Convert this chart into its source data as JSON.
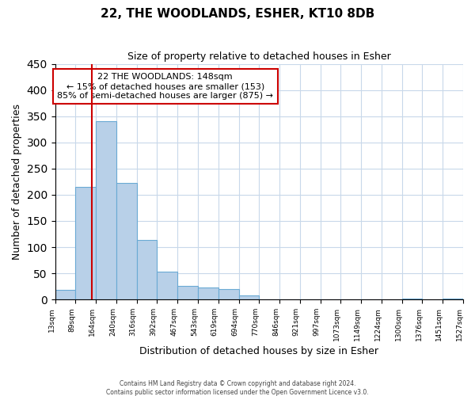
{
  "title": "22, THE WOODLANDS, ESHER, KT10 8DB",
  "subtitle": "Size of property relative to detached houses in Esher",
  "xlabel": "Distribution of detached houses by size in Esher",
  "ylabel": "Number of detached properties",
  "bar_heights": [
    18,
    215,
    340,
    222,
    113,
    53,
    26,
    23,
    20,
    8,
    0,
    0,
    0,
    0,
    0,
    0,
    0,
    2,
    0,
    2
  ],
  "bar_color": "#b8d0e8",
  "bar_edge_color": "#6aaad4",
  "vline_bar_index": 1.65,
  "vline_color": "#cc0000",
  "annotation_title": "22 THE WOODLANDS: 148sqm",
  "annotation_line1": "← 15% of detached houses are smaller (153)",
  "annotation_line2": "85% of semi-detached houses are larger (875) →",
  "annotation_box_edge_color": "#cc0000",
  "annotation_box_face_color": "#ffffff",
  "ylim": [
    0,
    450
  ],
  "tick_labels": [
    "13sqm",
    "89sqm",
    "164sqm",
    "240sqm",
    "316sqm",
    "392sqm",
    "467sqm",
    "543sqm",
    "619sqm",
    "694sqm",
    "770sqm",
    "846sqm",
    "921sqm",
    "997sqm",
    "1073sqm",
    "1149sqm",
    "1224sqm",
    "1300sqm",
    "1376sqm",
    "1451sqm",
    "1527sqm"
  ],
  "footer_line1": "Contains HM Land Registry data © Crown copyright and database right 2024.",
  "footer_line2": "Contains public sector information licensed under the Open Government Licence v3.0.",
  "background_color": "#ffffff",
  "grid_color": "#c8d8ea"
}
